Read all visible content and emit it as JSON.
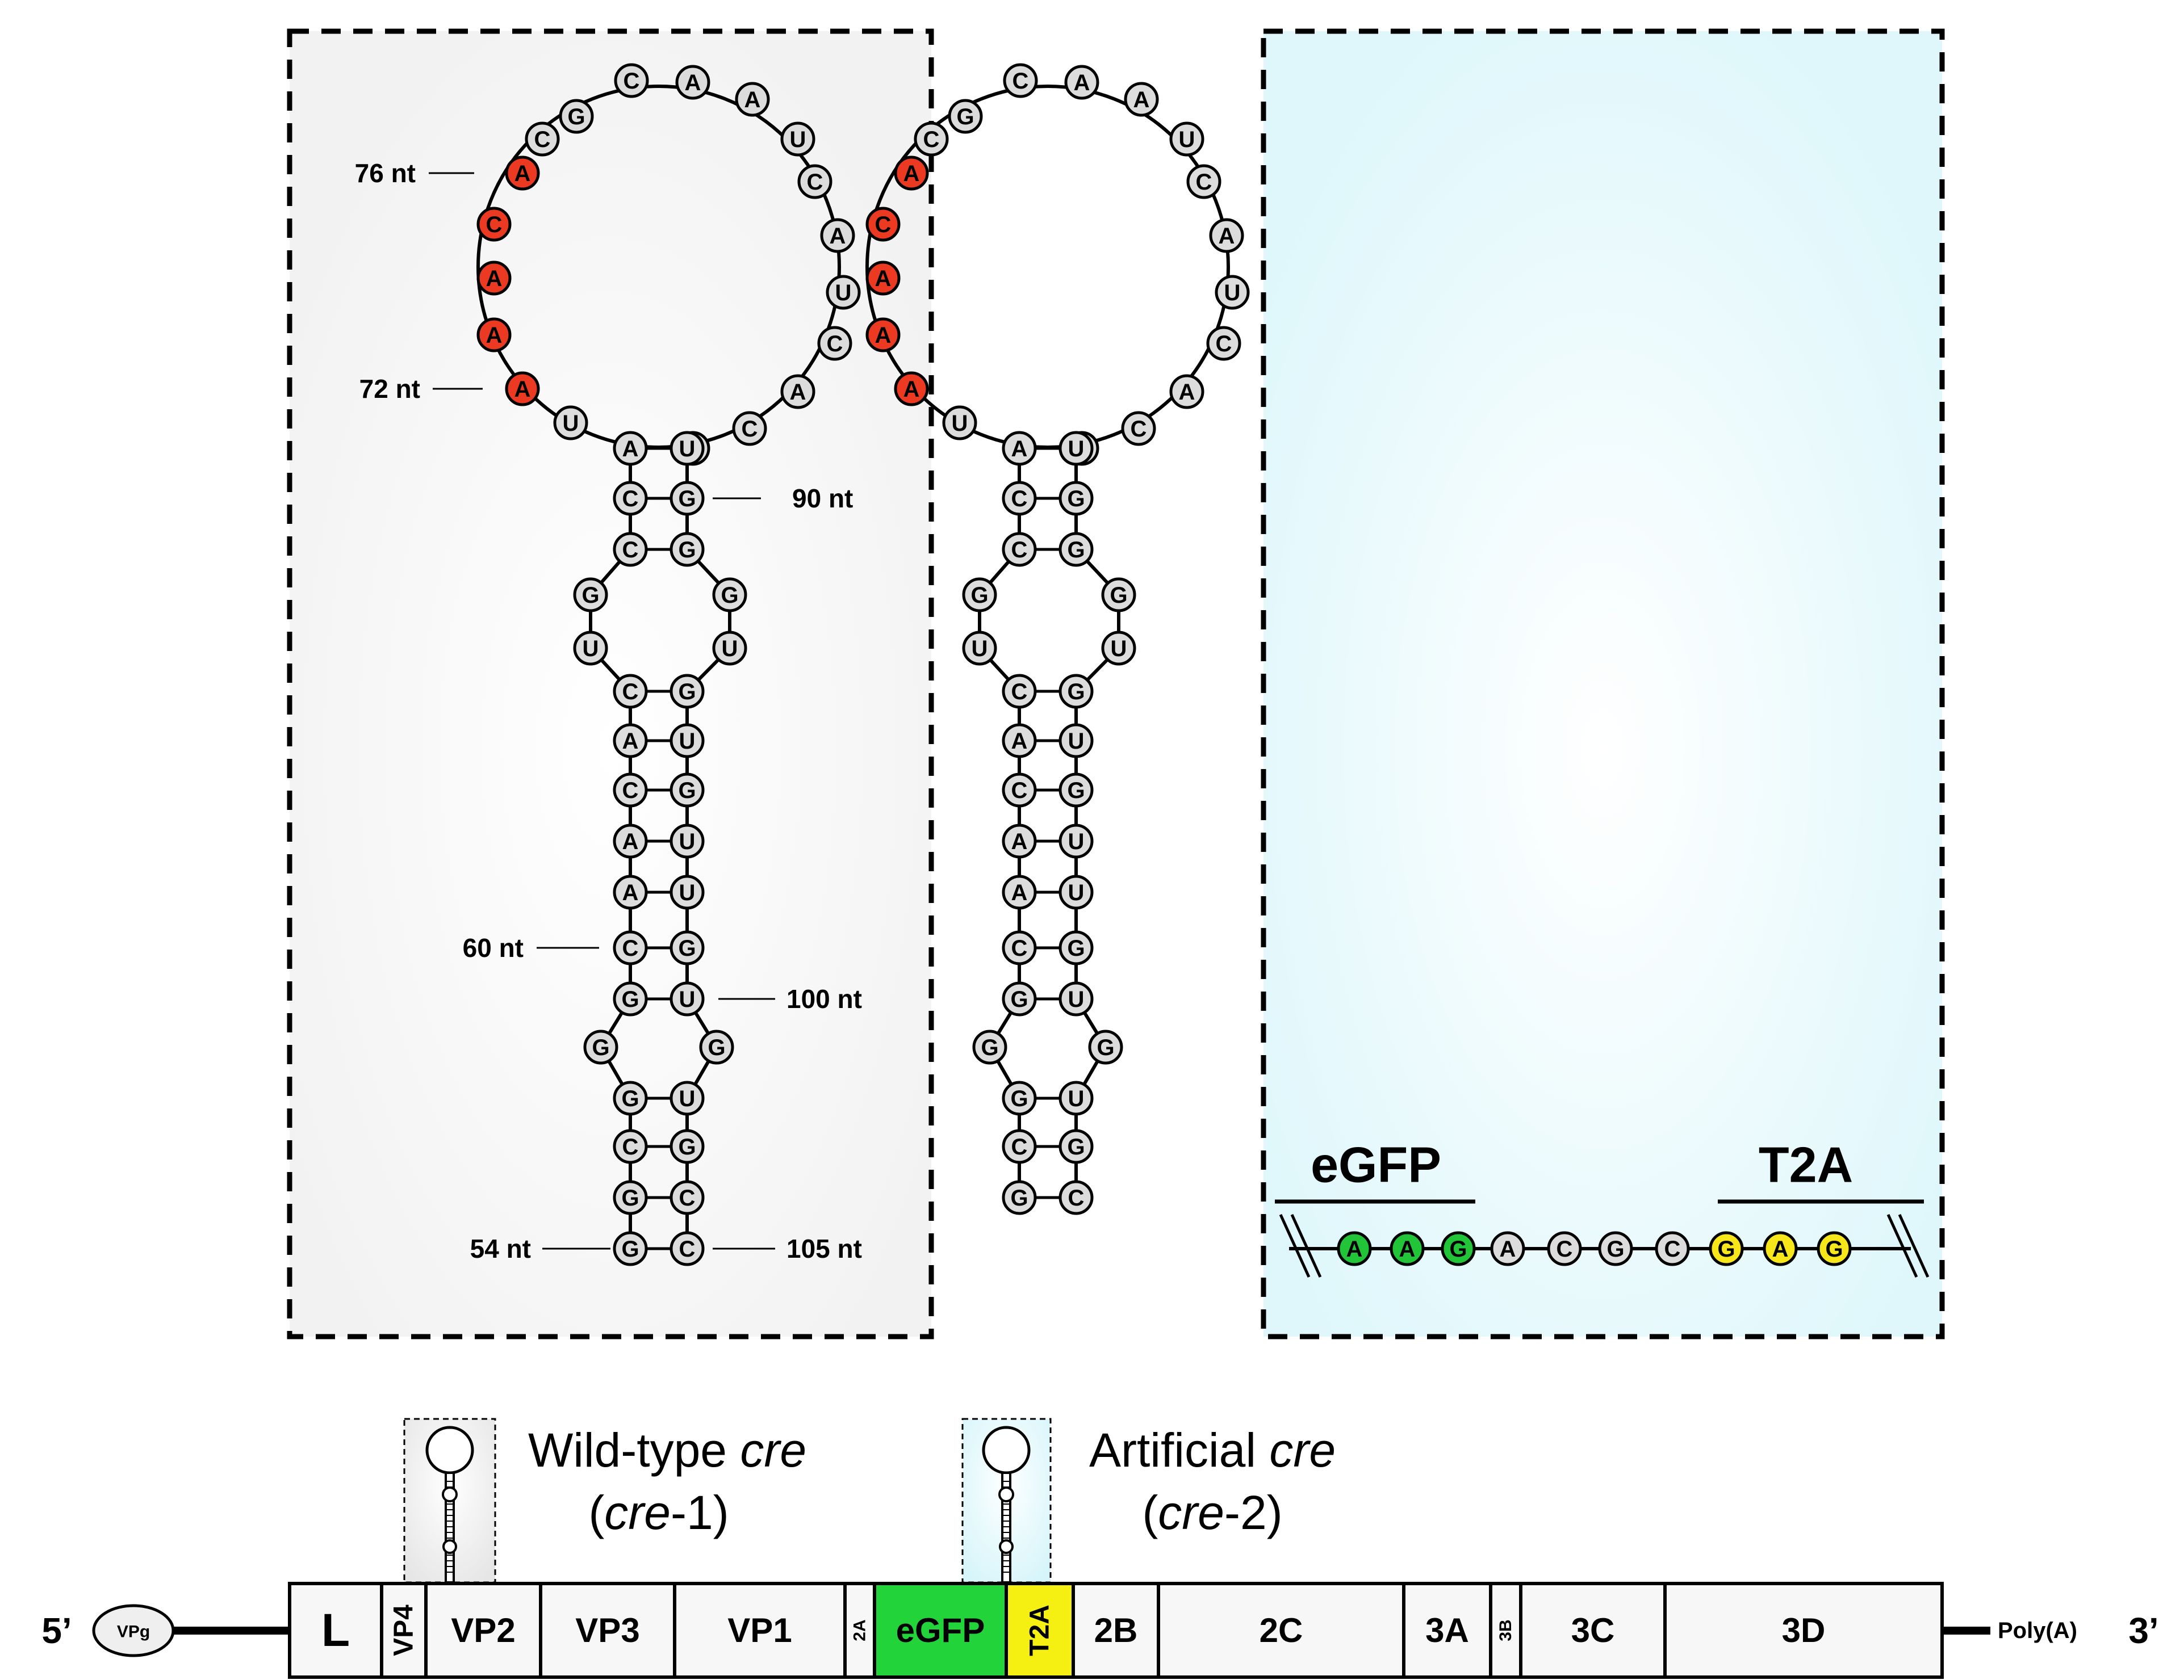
{
  "colors": {
    "nt_default": "#dcdcdc",
    "nt_red": "#ec3a22",
    "nt_green": "#22c538",
    "nt_yellow": "#f6e61a",
    "panel_left": "#f4f4f4",
    "panel_right": "#e4f9fc",
    "seg_default": "#f7f7f7",
    "seg_egfp": "#22d43a",
    "seg_t2a": "#f6ef12"
  },
  "left_panel": {
    "labels": {
      "nt76": "76 nt",
      "nt72": "72 nt",
      "nt90": "90 nt",
      "nt60": "60 nt",
      "nt100": "100 nt",
      "nt54": "54 nt",
      "nt105": "105 nt"
    },
    "loop": [
      "A",
      "C",
      "A",
      "A",
      "A",
      "C",
      "G",
      "C",
      "A",
      "A",
      "U",
      "C",
      "A",
      "U",
      "C",
      "A",
      "C",
      "U"
    ],
    "loop_red": [
      0,
      1,
      2,
      3,
      4
    ],
    "stem_left": [
      "A",
      "C",
      "C",
      "G",
      "U",
      "C",
      "A",
      "C",
      "A",
      "A",
      "C",
      "G",
      "G",
      "G",
      "C",
      "G",
      "G"
    ],
    "stem_right": [
      "U",
      "G",
      "G",
      "G",
      "U",
      "G",
      "U",
      "G",
      "U",
      "U",
      "G",
      "U",
      "G",
      "U",
      "G",
      "C",
      "C"
    ]
  },
  "right_panel": {
    "egfp_label": "eGFP",
    "t2a_label": "T2A",
    "loop": [
      "A",
      "C",
      "A",
      "A",
      "A",
      "C",
      "G",
      "C",
      "A",
      "A",
      "U",
      "C",
      "A",
      "U",
      "C",
      "A",
      "C",
      "U"
    ],
    "loop_red": [
      0,
      1,
      2,
      3,
      4
    ],
    "stem_left": [
      "A",
      "C",
      "C",
      "G",
      "U",
      "C",
      "A",
      "C",
      "A",
      "A",
      "C",
      "G",
      "G",
      "G",
      "C",
      "G"
    ],
    "stem_right": [
      "U",
      "G",
      "G",
      "G",
      "U",
      "G",
      "U",
      "G",
      "U",
      "U",
      "G",
      "U",
      "G",
      "U",
      "G",
      "C"
    ],
    "linear": [
      "A",
      "A",
      "G",
      "A",
      "C",
      "G",
      "C",
      "G",
      "A",
      "G"
    ],
    "linear_colors": [
      "green",
      "green",
      "green",
      "default",
      "default",
      "default",
      "default",
      "yellow",
      "yellow",
      "yellow"
    ]
  },
  "genome": {
    "five_prime": "5’",
    "vpg": "VPg",
    "three_prime": "3’",
    "polya": "Poly(A)",
    "wt_cre_line1_a": "Wild-type ",
    "wt_cre_line1_b": "cre",
    "wt_cre_line2_a": "(",
    "wt_cre_line2_b": "cre",
    "wt_cre_line2_c": "-1)",
    "art_cre_line1_a": "Artificial ",
    "art_cre_line1_b": "cre",
    "art_cre_line2_a": "(",
    "art_cre_line2_b": "cre",
    "art_cre_line2_c": "-2)",
    "segments": [
      {
        "label": "L",
        "color": "default",
        "vertical": false
      },
      {
        "label": "VP4",
        "color": "default",
        "vertical": true
      },
      {
        "label": "VP2",
        "color": "default",
        "vertical": false
      },
      {
        "label": "VP3",
        "color": "default",
        "vertical": false
      },
      {
        "label": "VP1",
        "color": "default",
        "vertical": false
      },
      {
        "label": "2A",
        "color": "default",
        "vertical": true
      },
      {
        "label": "eGFP",
        "color": "egfp",
        "vertical": false
      },
      {
        "label": "T2A",
        "color": "t2a",
        "vertical": true
      },
      {
        "label": "2B",
        "color": "default",
        "vertical": false
      },
      {
        "label": "2C",
        "color": "default",
        "vertical": false
      },
      {
        "label": "3A",
        "color": "default",
        "vertical": false
      },
      {
        "label": "3B",
        "color": "default",
        "vertical": true
      },
      {
        "label": "3C",
        "color": "default",
        "vertical": false
      },
      {
        "label": "3D",
        "color": "default",
        "vertical": false
      }
    ]
  }
}
